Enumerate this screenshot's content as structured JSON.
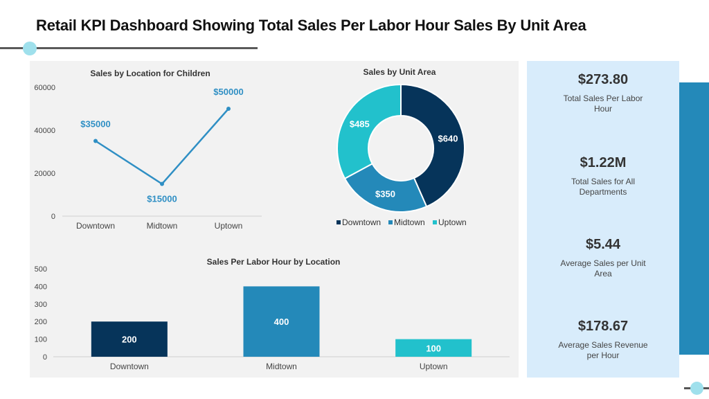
{
  "page": {
    "title": "Retail KPI Dashboard Showing Total Sales Per Labor Hour Sales By Unit Area"
  },
  "kpis": [
    {
      "value": "$273.80",
      "label": "Total Sales Per Labor Hour"
    },
    {
      "value": "$1.22M",
      "label": "Total Sales for All Departments"
    },
    {
      "value": "$5.44",
      "label": "Average Sales per Unit Area"
    },
    {
      "value": "$178.67",
      "label": "Average Sales Revenue per Hour"
    }
  ],
  "colors": {
    "dark_blue": "#06345a",
    "mid_blue": "#2489b9",
    "teal": "#22c1cc",
    "line_blue": "#2f8fc4"
  },
  "chart_data": [
    {
      "type": "line",
      "title": "Sales by Location for Children",
      "categories": [
        "Downtown",
        "Midtown",
        "Uptown"
      ],
      "values": [
        35000,
        15000,
        50000
      ],
      "data_labels": [
        "$35000",
        "$15000",
        "$50000"
      ],
      "yticks": [
        "0",
        "20000",
        "40000",
        "60000"
      ],
      "ylim": [
        0,
        60000
      ],
      "grid": false
    },
    {
      "type": "pie",
      "title": "Sales by Unit Area",
      "categories": [
        "Downtown",
        "Midtown",
        "Uptown"
      ],
      "values": [
        640,
        350,
        485
      ],
      "data_labels": [
        "$640",
        "$350",
        "$485"
      ],
      "donut": true,
      "legend": "bottom"
    },
    {
      "type": "bar",
      "title": "Sales Per Labor Hour by Location",
      "categories": [
        "Downtown",
        "Midtown",
        "Uptown"
      ],
      "values": [
        200,
        400,
        100
      ],
      "data_labels": [
        "200",
        "400",
        "100"
      ],
      "yticks": [
        "0",
        "100",
        "200",
        "300",
        "400",
        "500"
      ],
      "ylim": [
        0,
        500
      ],
      "grid": false
    }
  ]
}
